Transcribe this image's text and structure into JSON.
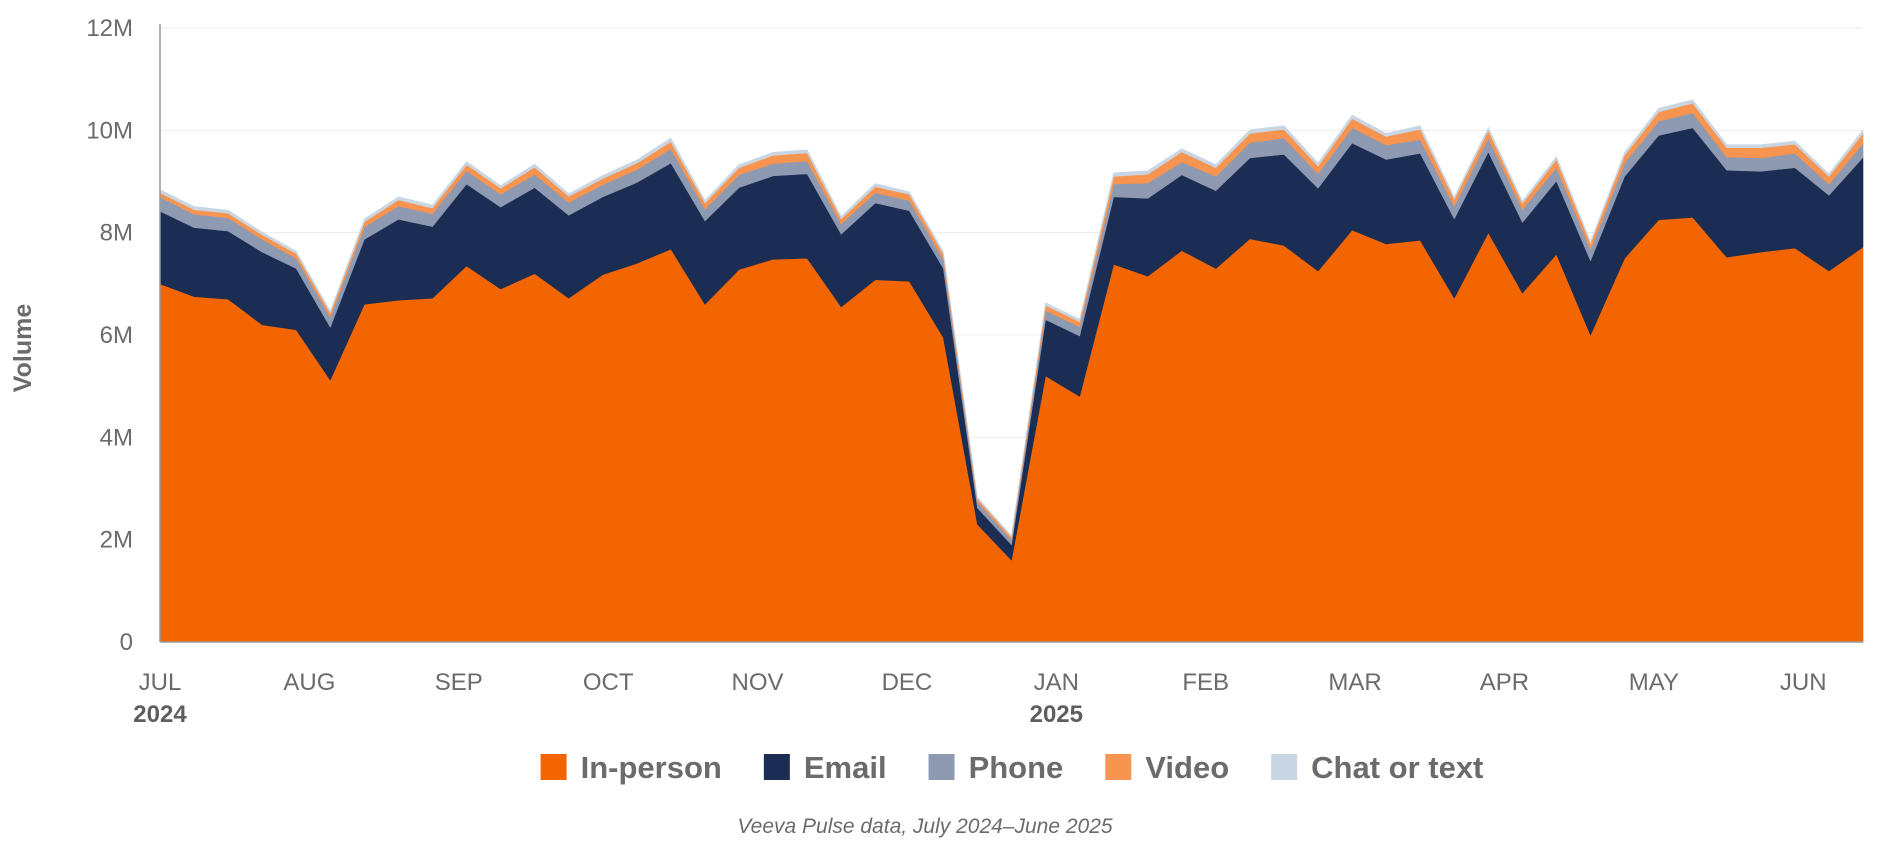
{
  "chart_data": {
    "type": "area",
    "stacked": true,
    "ylabel": "Volume",
    "source_note": "Veeva Pulse data, July 2024–June 2025",
    "ylim": [
      0,
      12000000
    ],
    "y_ticks": [
      {
        "value": 0,
        "label": "0"
      },
      {
        "value": 2000000,
        "label": "2M"
      },
      {
        "value": 4000000,
        "label": "4M"
      },
      {
        "value": 6000000,
        "label": "6M"
      },
      {
        "value": 8000000,
        "label": "8M"
      },
      {
        "value": 10000000,
        "label": "10M"
      },
      {
        "value": 12000000,
        "label": "12M"
      }
    ],
    "x_ticks": [
      {
        "week": 1,
        "label": "JUL",
        "year": "2024"
      },
      {
        "week": 6,
        "label": "AUG"
      },
      {
        "week": 11,
        "label": "SEP"
      },
      {
        "week": 16,
        "label": "OCT"
      },
      {
        "week": 21,
        "label": "NOV"
      },
      {
        "week": 26,
        "label": "DEC"
      },
      {
        "week": 31,
        "label": "JAN",
        "year": "2025"
      },
      {
        "week": 36,
        "label": "FEB"
      },
      {
        "week": 41,
        "label": "MAR"
      },
      {
        "week": 46,
        "label": "APR"
      },
      {
        "week": 51,
        "label": "MAY"
      },
      {
        "week": 56,
        "label": "JUN"
      }
    ],
    "x_range": [
      1,
      58
    ],
    "legend_position": "bottom",
    "series": [
      {
        "name": "In-person",
        "color": "#F26500",
        "values": [
          7.0,
          6.75,
          6.7,
          6.2,
          6.1,
          5.12,
          6.6,
          6.68,
          6.72,
          7.35,
          6.9,
          7.2,
          6.72,
          7.18,
          7.4,
          7.68,
          6.6,
          7.28,
          7.48,
          7.5,
          6.55,
          7.08,
          7.05,
          5.95,
          2.3,
          1.6,
          5.2,
          4.8,
          7.38,
          7.15,
          7.65,
          7.3,
          7.88,
          7.75,
          7.25,
          8.05,
          7.78,
          7.85,
          6.72,
          8.0,
          6.82,
          7.58,
          6.0,
          7.5,
          8.25,
          8.3,
          7.52,
          7.62,
          7.7,
          7.25,
          7.72
        ]
      },
      {
        "name": "Email",
        "color": "#1B2D52",
        "values": [
          1.42,
          1.35,
          1.33,
          1.42,
          1.2,
          1.03,
          1.27,
          1.58,
          1.4,
          1.6,
          1.6,
          1.68,
          1.62,
          1.52,
          1.58,
          1.68,
          1.63,
          1.6,
          1.63,
          1.65,
          1.42,
          1.5,
          1.38,
          1.35,
          0.32,
          0.3,
          1.1,
          1.18,
          1.32,
          1.52,
          1.48,
          1.52,
          1.58,
          1.78,
          1.62,
          1.7,
          1.65,
          1.7,
          1.55,
          1.58,
          1.38,
          1.43,
          1.45,
          1.6,
          1.65,
          1.75,
          1.7,
          1.58,
          1.57,
          1.48,
          1.75
        ]
      },
      {
        "name": "Phone",
        "color": "#8E99B2",
        "values": [
          0.28,
          0.26,
          0.26,
          0.25,
          0.2,
          0.2,
          0.24,
          0.26,
          0.25,
          0.26,
          0.25,
          0.26,
          0.25,
          0.24,
          0.25,
          0.28,
          0.23,
          0.25,
          0.24,
          0.25,
          0.2,
          0.2,
          0.2,
          0.18,
          0.12,
          0.1,
          0.18,
          0.18,
          0.25,
          0.3,
          0.25,
          0.28,
          0.3,
          0.32,
          0.28,
          0.3,
          0.28,
          0.27,
          0.25,
          0.27,
          0.25,
          0.26,
          0.22,
          0.26,
          0.28,
          0.29,
          0.26,
          0.26,
          0.28,
          0.22,
          0.27
        ]
      },
      {
        "name": "Video",
        "color": "#F7944F",
        "values": [
          0.08,
          0.09,
          0.09,
          0.09,
          0.09,
          0.08,
          0.1,
          0.12,
          0.11,
          0.12,
          0.12,
          0.14,
          0.12,
          0.12,
          0.13,
          0.14,
          0.12,
          0.14,
          0.16,
          0.16,
          0.1,
          0.12,
          0.12,
          0.1,
          0.06,
          0.05,
          0.1,
          0.1,
          0.15,
          0.17,
          0.2,
          0.17,
          0.18,
          0.17,
          0.15,
          0.18,
          0.17,
          0.2,
          0.13,
          0.15,
          0.12,
          0.16,
          0.12,
          0.15,
          0.18,
          0.19,
          0.18,
          0.2,
          0.18,
          0.15,
          0.2
        ]
      },
      {
        "name": "Chat or text",
        "color": "#C8D6E4",
        "values": [
          0.06,
          0.06,
          0.06,
          0.05,
          0.05,
          0.04,
          0.06,
          0.06,
          0.06,
          0.06,
          0.05,
          0.06,
          0.05,
          0.06,
          0.06,
          0.07,
          0.05,
          0.06,
          0.06,
          0.06,
          0.05,
          0.06,
          0.05,
          0.05,
          0.03,
          0.03,
          0.05,
          0.05,
          0.07,
          0.07,
          0.06,
          0.06,
          0.07,
          0.07,
          0.06,
          0.07,
          0.06,
          0.07,
          0.05,
          0.06,
          0.05,
          0.06,
          0.04,
          0.06,
          0.07,
          0.07,
          0.06,
          0.06,
          0.06,
          0.05,
          0.07
        ]
      }
    ]
  }
}
